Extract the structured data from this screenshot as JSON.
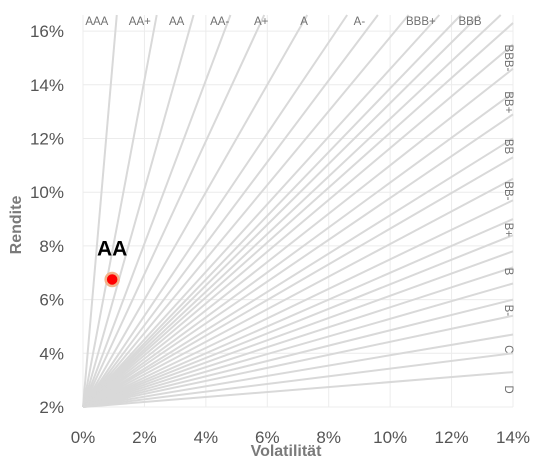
{
  "chart_data": {
    "type": "scatter",
    "title": "",
    "xlabel": "Volatilität",
    "ylabel": "Rendite",
    "xlim": [
      0,
      14
    ],
    "ylim": [
      2,
      16.6
    ],
    "x_ticks": [
      "0%",
      "2%",
      "4%",
      "6%",
      "8%",
      "10%",
      "12%",
      "14%"
    ],
    "y_ticks": [
      "2%",
      "4%",
      "6%",
      "8%",
      "10%",
      "12%",
      "14%",
      "16%"
    ],
    "x_tick_values": [
      0,
      2,
      4,
      6,
      8,
      10,
      12,
      14
    ],
    "y_tick_values": [
      2,
      4,
      6,
      8,
      10,
      12,
      14,
      16
    ],
    "grid": true,
    "rating_lines": {
      "origin": [
        0,
        2
      ],
      "top_end_x": [
        1.1,
        2.4,
        3.6,
        4.8,
        5.9,
        7.3,
        8.6,
        9.6,
        10.6,
        11.6,
        12.3,
        12.9,
        13.6
      ],
      "right_end_y": [
        16.3,
        15.5,
        14.6,
        13.7,
        12.9,
        12.0,
        11.3,
        10.5,
        9.7,
        9.0,
        8.4,
        7.8,
        7.2,
        6.6,
        6.0,
        5.4,
        4.7,
        4.0,
        3.3
      ]
    },
    "rating_labels_top": [
      {
        "text": "AAA",
        "x": 0.45
      },
      {
        "text": "AA+",
        "x": 1.85
      },
      {
        "text": "AA",
        "x": 3.05
      },
      {
        "text": "AA-",
        "x": 4.45
      },
      {
        "text": "A+",
        "x": 5.8
      },
      {
        "text": "A",
        "x": 7.2
      },
      {
        "text": "A-",
        "x": 9.0
      },
      {
        "text": "BBB+",
        "x": 11.0
      },
      {
        "text": "BBB",
        "x": 12.6
      }
    ],
    "rating_labels_right": [
      {
        "text": "BBB-",
        "y": 15.0
      },
      {
        "text": "BB+",
        "y": 13.35
      },
      {
        "text": "BB",
        "y": 11.7
      },
      {
        "text": "BB-",
        "y": 10.05
      },
      {
        "text": "B+",
        "y": 8.6
      },
      {
        "text": "B",
        "y": 7.05
      },
      {
        "text": "B-",
        "y": 5.6
      },
      {
        "text": "C",
        "y": 4.15
      },
      {
        "text": "D",
        "y": 2.65
      }
    ],
    "series": [
      {
        "label": "AA",
        "x": 0.95,
        "y": 6.75,
        "color": "#ff0000",
        "edge_color": "#f2b48c"
      }
    ],
    "colors": {
      "grid": "#ececec",
      "rating_line": "#d9d9d9",
      "rating_label": "#707070",
      "tick": "#555555",
      "axis_title": "#7a7a7a"
    }
  }
}
